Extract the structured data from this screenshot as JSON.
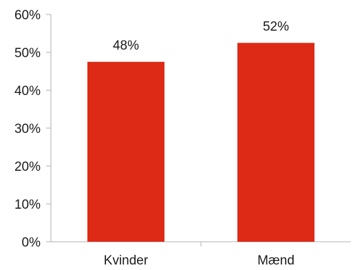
{
  "chart_data": {
    "type": "bar",
    "title": "",
    "xlabel": "",
    "ylabel": "",
    "categories": [
      "Kvinder",
      "Mænd"
    ],
    "values": [
      47.5,
      52.5
    ],
    "data_labels": [
      "48%",
      "52%"
    ],
    "ylim": [
      0,
      60
    ],
    "y_ticks": [
      0,
      10,
      20,
      30,
      40,
      50,
      60
    ],
    "y_tick_labels": [
      "0%",
      "10%",
      "20%",
      "30%",
      "40%",
      "50%",
      "60%"
    ],
    "grid": false,
    "legend": "none",
    "colors": {
      "bar": "#dc2a17",
      "axis": "#bfbfbf",
      "text": "#1a1a1a"
    }
  }
}
